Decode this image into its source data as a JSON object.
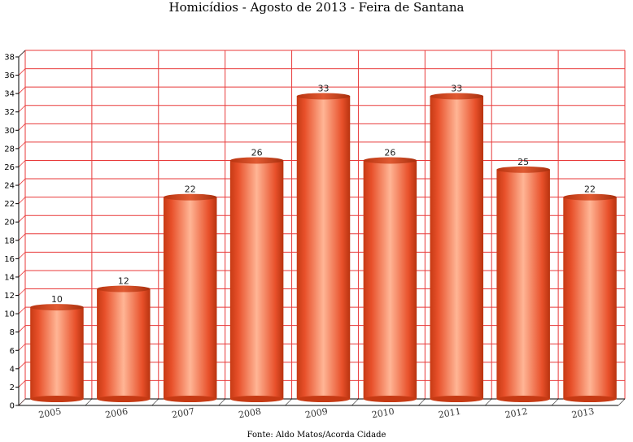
{
  "chart_data": {
    "type": "bar",
    "title": "Homicídios - Agosto de 2013 - Feira de Santana",
    "categories": [
      "2005",
      "2006",
      "2007",
      "2008",
      "2009",
      "2010",
      "2011",
      "2012",
      "2013"
    ],
    "values": [
      10,
      12,
      22,
      26,
      33,
      26,
      33,
      25,
      22
    ],
    "ylim": [
      0,
      38
    ],
    "yticks": [
      0,
      2,
      4,
      6,
      8,
      10,
      12,
      14,
      16,
      18,
      20,
      22,
      24,
      26,
      28,
      30,
      32,
      34,
      36,
      38
    ],
    "xlabel": "",
    "ylabel": "",
    "grid": true,
    "legend": "none",
    "bar_color": "#e8502a",
    "grid_color": "#e83a3a",
    "source": "Fonte: Aldo Matos/Acorda Cidade"
  }
}
